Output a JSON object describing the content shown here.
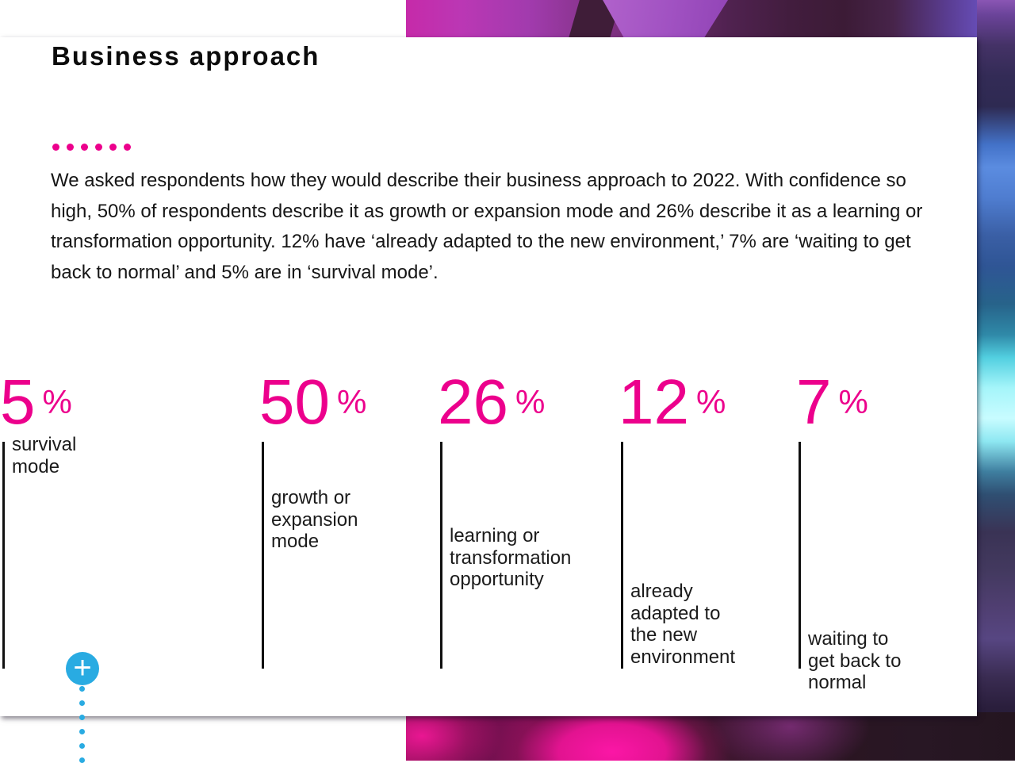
{
  "slide": {
    "title": "Business approach",
    "description": "We asked respondents how they would describe their business approach to 2022. With confidence so high, 50% of respondents describe it as growth or expansion mode and 26% describe it as a learning or transformation opportunity. 12% have ‘already adapted to the new environment,’ 7% are ‘waiting to get back to normal’ and 5% are in ‘survival mode’.",
    "stats": [
      {
        "value": "50",
        "unit": "%",
        "label": "growth or\nexpansion\nmode"
      },
      {
        "value": "26",
        "unit": "%",
        "label": "learning or\ntransformation\nopportunity"
      },
      {
        "value": "12",
        "unit": "%",
        "label": "already\nadapted to\nthe new\nenvironment"
      },
      {
        "value": "7",
        "unit": "%",
        "label": "waiting to\nget back to\nnormal"
      },
      {
        "value": "5",
        "unit": "%",
        "label": "survival\nmode"
      }
    ],
    "plus_icon": "+",
    "colors": {
      "accent_pink": "#ec008c",
      "accent_cyan": "#29abe2",
      "text_dark": "#1b1b1b"
    }
  },
  "chart_data": {
    "type": "bar",
    "title": "Business approach",
    "categories": [
      "growth or expansion mode",
      "learning or transformation opportunity",
      "already adapted to the new environment",
      "waiting to get back to normal",
      "survival mode"
    ],
    "values": [
      50,
      26,
      12,
      7,
      5
    ],
    "unit": "%",
    "legend": false,
    "grid": false
  }
}
